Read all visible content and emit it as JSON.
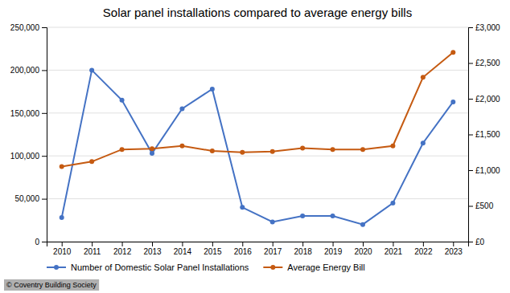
{
  "chart_data": {
    "type": "line",
    "title": "Solar panel installations compared to average energy bills",
    "x": [
      2010,
      2011,
      2012,
      2013,
      2014,
      2015,
      2016,
      2017,
      2018,
      2019,
      2020,
      2021,
      2022,
      2023
    ],
    "xlim": [
      2009.5,
      2023.5
    ],
    "xticks": [
      2010,
      2011,
      2012,
      2013,
      2014,
      2015,
      2016,
      2017,
      2018,
      2019,
      2020,
      2021,
      2022,
      2023
    ],
    "series": [
      {
        "name": "Number of Domestic Solar Panel Installations",
        "color": "#4472C4",
        "marker": "circle",
        "values": [
          28000,
          200000,
          165000,
          103000,
          155000,
          178000,
          40000,
          23000,
          30000,
          30000,
          20000,
          45000,
          115000,
          163000
        ]
      },
      {
        "name": "Average Energy Bill",
        "color": "#C55A11",
        "marker": "circle",
        "axis": "y2",
        "values": [
          1050,
          1120,
          1290,
          1300,
          1340,
          1270,
          1250,
          1260,
          1310,
          1290,
          1290,
          1340,
          2300,
          2650
        ]
      }
    ],
    "ylim": [
      0,
      250000
    ],
    "yticks": [
      0,
      {
        "value": 50000,
        "label": "50,000"
      },
      {
        "value": 100000,
        "label": "100,000"
      },
      {
        "value": 150000,
        "label": "150,000"
      },
      {
        "value": 200000,
        "label": "200,000"
      },
      {
        "value": 250000,
        "label": "250,000"
      }
    ],
    "y2lim": [
      0,
      3000
    ],
    "y2ticks": [
      {
        "value": 0,
        "label": "£0"
      },
      {
        "value": 500,
        "label": "£500"
      },
      {
        "value": 1000,
        "label": "£1,000"
      },
      {
        "value": 1500,
        "label": "£1,500"
      },
      {
        "value": 2000,
        "label": "£2,000"
      },
      {
        "value": 2500,
        "label": "£2,500"
      },
      {
        "value": 3000,
        "label": "£3,000"
      }
    ],
    "grid": true,
    "legend": "lower left",
    "annotations": [
      "© Coventry Building Society"
    ]
  }
}
